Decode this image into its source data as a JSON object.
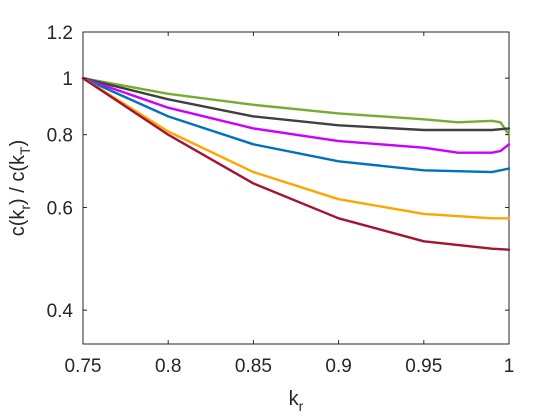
{
  "chart_data": {
    "type": "line",
    "xlabel": {
      "main": "k",
      "sub": "r"
    },
    "ylabel": {
      "part1": "c(k",
      "sub1": "r",
      "part2": ") / c(k",
      "sub2": "T",
      "part3": ")"
    },
    "x_scale": "linear",
    "y_scale": "log",
    "xlim": [
      0.75,
      1.0
    ],
    "ylim": [
      0.35,
      1.2
    ],
    "x_ticks": [
      0.75,
      0.8,
      0.85,
      0.9,
      0.95,
      1.0
    ],
    "x_tick_labels": [
      "0.75",
      "0.8",
      "0.85",
      "0.9",
      "0.95",
      "1"
    ],
    "y_ticks": [
      0.4,
      0.6,
      0.8,
      1.0,
      1.2
    ],
    "y_tick_labels": [
      "0.4",
      "0.6",
      "0.8",
      "1",
      "1.2"
    ],
    "grid": false,
    "legend": "none",
    "series": [
      {
        "color": "#77AC30",
        "x": [
          0.75,
          0.8,
          0.85,
          0.9,
          0.95,
          0.97,
          0.99,
          0.995,
          1.0
        ],
        "y": [
          1.0,
          0.94,
          0.9,
          0.87,
          0.85,
          0.84,
          0.845,
          0.84,
          0.8
        ]
      },
      {
        "color": "#404040",
        "x": [
          0.75,
          0.8,
          0.85,
          0.9,
          0.95,
          0.99,
          1.0
        ],
        "y": [
          1.0,
          0.92,
          0.86,
          0.83,
          0.815,
          0.815,
          0.82
        ]
      },
      {
        "color": "#CC00FF",
        "x": [
          0.75,
          0.8,
          0.85,
          0.9,
          0.95,
          0.97,
          0.99,
          0.995,
          1.0
        ],
        "y": [
          1.0,
          0.89,
          0.82,
          0.78,
          0.76,
          0.745,
          0.745,
          0.75,
          0.77
        ]
      },
      {
        "color": "#0072BD",
        "x": [
          0.75,
          0.8,
          0.85,
          0.9,
          0.95,
          0.99,
          1.0
        ],
        "y": [
          1.0,
          0.86,
          0.77,
          0.72,
          0.695,
          0.69,
          0.7
        ]
      },
      {
        "color": "#FFA500",
        "x": [
          0.75,
          0.8,
          0.85,
          0.9,
          0.95,
          0.99,
          1.0
        ],
        "y": [
          1.0,
          0.81,
          0.69,
          0.62,
          0.585,
          0.575,
          0.575
        ]
      },
      {
        "color": "#A2142F",
        "x": [
          0.75,
          0.8,
          0.85,
          0.9,
          0.95,
          0.99,
          1.0
        ],
        "y": [
          1.0,
          0.8,
          0.66,
          0.575,
          0.525,
          0.51,
          0.508
        ]
      }
    ]
  }
}
